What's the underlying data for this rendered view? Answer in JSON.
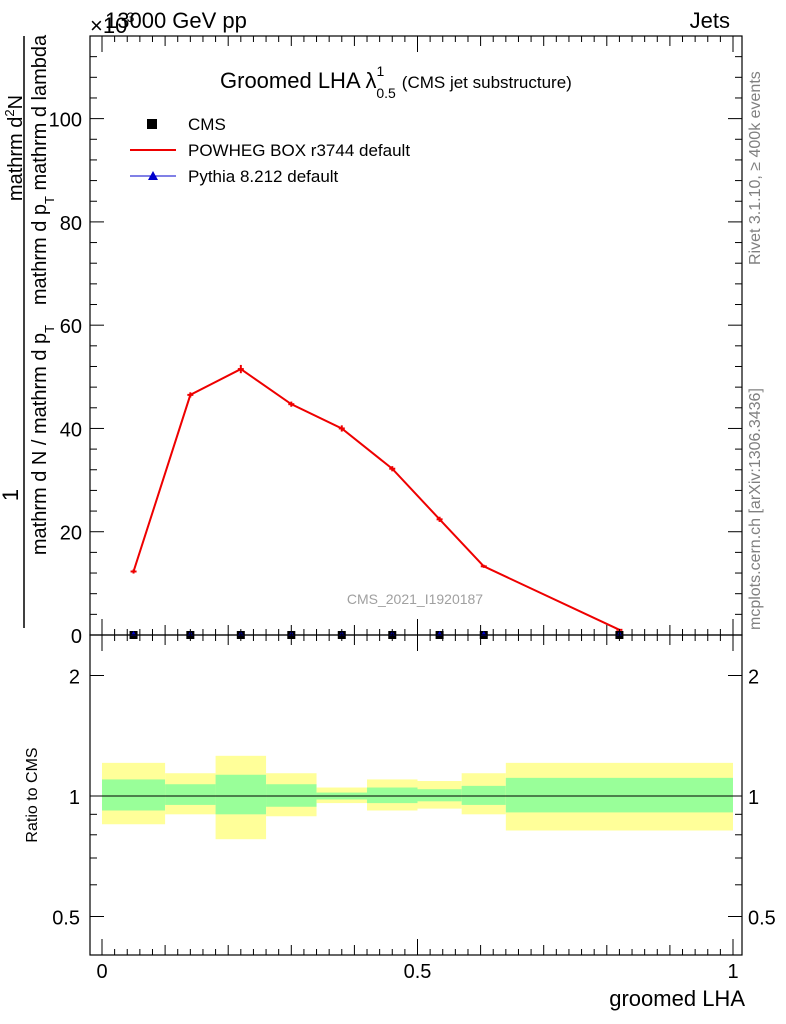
{
  "header": {
    "energy_label": "13000 GeV pp",
    "process_label": "Jets",
    "exponent_label": "×10",
    "exponent_power": "-3"
  },
  "side_labels": {
    "rivet": "Rivet 3.1.10, ≥ 400k events",
    "mcplots": "mcplots.cern.ch [arXiv:1306.3436]"
  },
  "watermark": "CMS_2021_I1920187",
  "chart_data": [
    {
      "type": "line",
      "title": "Groomed LHA λ",
      "title_sup": "1",
      "title_sub": "0.5",
      "subtitle": "(CMS jet substructure)",
      "xlabel": "",
      "ylabel": {
        "prefix": "1",
        "den_main": "mathrm d N / mathrm d p",
        "den_sub": "T",
        "num_main": "mathrm d",
        "num_sup": "2",
        "num_tail": "N",
        "den2_main": "mathrm d p",
        "den2_sub": "T",
        "den2_tail": " mathrm d lambda"
      },
      "xlim": [
        0,
        1
      ],
      "ylim": [
        0,
        116
      ],
      "yticks": [
        0,
        20,
        40,
        60,
        80,
        100
      ],
      "legend": [
        {
          "label": "CMS",
          "color": "#000000",
          "marker": "square"
        },
        {
          "label": "POWHEG BOX r3744 default",
          "color": "#ee0000",
          "marker": "line"
        },
        {
          "label": "Pythia 8.212 default",
          "color": "#0000cc",
          "marker": "triangle"
        }
      ],
      "series": [
        {
          "name": "POWHEG BOX r3744 default",
          "color": "#ee0000",
          "x": [
            0.05,
            0.14,
            0.22,
            0.3,
            0.38,
            0.46,
            0.535,
            0.605,
            0.82
          ],
          "values": [
            12.3,
            46.5,
            51.5,
            44.7,
            40.0,
            32.2,
            22.4,
            13.3,
            1.0
          ],
          "errors": [
            0.4,
            0.5,
            0.8,
            0.5,
            0.6,
            0.5,
            0.5,
            0.3,
            0.1
          ]
        },
        {
          "name": "CMS",
          "color": "#000000",
          "x": [
            0.05,
            0.14,
            0.22,
            0.3,
            0.38,
            0.46,
            0.535,
            0.605,
            0.82
          ],
          "values": [
            0,
            0,
            0,
            0,
            0,
            0,
            0,
            0,
            0
          ]
        },
        {
          "name": "Pythia 8.212 default",
          "color": "#0000cc",
          "x": [
            0.05,
            0.14,
            0.22,
            0.3,
            0.38,
            0.46,
            0.535,
            0.605,
            0.82
          ],
          "values": [
            0,
            0,
            0,
            0,
            0,
            0,
            0,
            0,
            0
          ]
        }
      ]
    },
    {
      "type": "area",
      "title": "",
      "xlabel": "groomed LHA",
      "ylabel": "Ratio to CMS",
      "xlim": [
        0,
        1
      ],
      "ylim": [
        0.4,
        2.3
      ],
      "ytick_labels": [
        "0.5",
        "1",
        "2"
      ],
      "yticks": [
        0.5,
        1,
        2
      ],
      "xticks": [
        0,
        0.5,
        1
      ],
      "xtick_labels": [
        "0",
        "0.5",
        "1"
      ],
      "bins": [
        {
          "lo": 0.0,
          "hi": 0.1,
          "in_lo": 0.92,
          "in_hi": 1.1,
          "out_lo": 0.85,
          "out_hi": 1.21
        },
        {
          "lo": 0.1,
          "hi": 0.18,
          "in_lo": 0.95,
          "in_hi": 1.07,
          "out_lo": 0.9,
          "out_hi": 1.14
        },
        {
          "lo": 0.18,
          "hi": 0.26,
          "in_lo": 0.9,
          "in_hi": 1.13,
          "out_lo": 0.78,
          "out_hi": 1.26
        },
        {
          "lo": 0.26,
          "hi": 0.34,
          "in_lo": 0.94,
          "in_hi": 1.07,
          "out_lo": 0.89,
          "out_hi": 1.14
        },
        {
          "lo": 0.34,
          "hi": 0.42,
          "in_lo": 0.98,
          "in_hi": 1.02,
          "out_lo": 0.96,
          "out_hi": 1.05
        },
        {
          "lo": 0.42,
          "hi": 0.5,
          "in_lo": 0.96,
          "in_hi": 1.05,
          "out_lo": 0.92,
          "out_hi": 1.1
        },
        {
          "lo": 0.5,
          "hi": 0.57,
          "in_lo": 0.97,
          "in_hi": 1.04,
          "out_lo": 0.93,
          "out_hi": 1.09
        },
        {
          "lo": 0.57,
          "hi": 0.64,
          "in_lo": 0.95,
          "in_hi": 1.06,
          "out_lo": 0.9,
          "out_hi": 1.14
        },
        {
          "lo": 0.64,
          "hi": 1.0,
          "in_lo": 0.91,
          "in_hi": 1.11,
          "out_lo": 0.82,
          "out_hi": 1.21
        }
      ],
      "band_colors": {
        "inner": "#99ff99",
        "outer": "#ffff99"
      }
    }
  ]
}
